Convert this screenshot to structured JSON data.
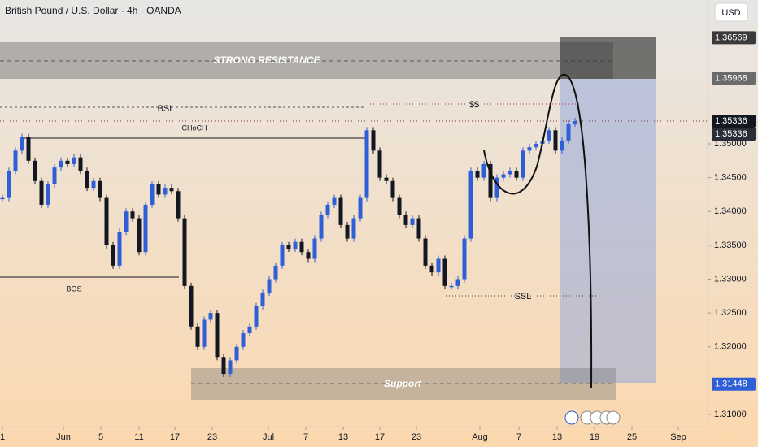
{
  "chart_data": {
    "type": "candlestick",
    "title": "British Pound / U.S. Dollar · 4h · OANDA",
    "currency": "USD",
    "x": [
      0,
      1,
      2,
      3,
      4,
      5,
      6,
      7,
      8,
      9,
      10,
      11,
      12,
      13,
      14,
      15,
      16,
      17,
      18,
      19,
      20,
      21,
      22,
      23,
      24,
      25,
      26,
      27,
      28,
      29,
      30,
      31,
      32,
      33,
      34,
      35,
      36,
      37,
      38,
      39,
      40,
      41,
      42,
      43,
      44,
      45,
      46,
      47,
      48,
      49,
      50,
      51,
      52,
      53,
      54,
      55,
      56,
      57,
      58,
      59,
      60,
      61,
      62,
      63,
      64,
      65,
      66,
      67,
      68,
      69,
      70,
      71,
      72,
      73,
      74,
      75,
      76,
      77,
      78,
      79,
      80,
      81,
      82,
      83,
      84,
      85,
      86,
      87,
      88
    ],
    "series": [
      {
        "name": "GBPUSD",
        "up_color": "#2f5fd6",
        "down_color": "#131722",
        "values": [
          1.342,
          1.346,
          1.349,
          1.351,
          1.3475,
          1.3445,
          1.341,
          1.344,
          1.3465,
          1.3475,
          1.347,
          1.348,
          1.346,
          1.3435,
          1.3445,
          1.342,
          1.335,
          1.332,
          1.337,
          1.34,
          1.339,
          1.334,
          1.341,
          1.344,
          1.3425,
          1.3435,
          1.343,
          1.339,
          1.329,
          1.323,
          1.32,
          1.324,
          1.325,
          1.3185,
          1.316,
          1.318,
          1.32,
          1.322,
          1.323,
          1.326,
          1.328,
          1.33,
          1.332,
          1.335,
          1.3345,
          1.3355,
          1.334,
          1.333,
          1.336,
          1.3395,
          1.341,
          1.342,
          1.338,
          1.336,
          1.339,
          1.342,
          1.352,
          1.349,
          1.345,
          1.3445,
          1.342,
          1.3395,
          1.338,
          1.339,
          1.336,
          1.332,
          1.331,
          1.333,
          1.329,
          1.329,
          1.33,
          1.336,
          1.346,
          1.345,
          1.347,
          1.342,
          1.345,
          1.3455,
          1.346,
          1.345,
          1.349,
          1.3495,
          1.35,
          1.3505,
          1.352,
          1.349,
          1.3505,
          1.353,
          1.35336
        ]
      }
    ],
    "xlim": [
      -0.375,
      108.375
    ],
    "ylim": [
      1.3082,
      1.37126
    ],
    "xticks": [
      {
        "value": 0,
        "label": "1"
      },
      {
        "value": 9.375,
        "label": "Jun"
      },
      {
        "value": 15.125,
        "label": "5"
      },
      {
        "value": 21,
        "label": "11"
      },
      {
        "value": 26.5,
        "label": "17"
      },
      {
        "value": 32.25,
        "label": "23"
      },
      {
        "value": 40.875,
        "label": "Jul"
      },
      {
        "value": 46.625,
        "label": "7"
      },
      {
        "value": 52.375,
        "label": "13"
      },
      {
        "value": 58,
        "label": "17"
      },
      {
        "value": 63.625,
        "label": "23"
      },
      {
        "value": 73.375,
        "label": "Aug"
      },
      {
        "value": 79.375,
        "label": "7"
      },
      {
        "value": 85.25,
        "label": "13"
      },
      {
        "value": 91,
        "label": "19"
      },
      {
        "value": 96.75,
        "label": "25"
      },
      {
        "value": 103.875,
        "label": "Sep"
      }
    ],
    "yticks": [
      {
        "value": 1.31,
        "label": "1.31000"
      },
      {
        "value": 1.32,
        "label": "1.32000"
      },
      {
        "value": 1.325,
        "label": "1.32500"
      },
      {
        "value": 1.33,
        "label": "1.33000"
      },
      {
        "value": 1.335,
        "label": "1.33500"
      },
      {
        "value": 1.34,
        "label": "1.34000"
      },
      {
        "value": 1.345,
        "label": "1.34500"
      },
      {
        "value": 1.35,
        "label": "1.35000"
      }
    ],
    "price_labels": [
      {
        "value": 1.36569,
        "label": "1.36569",
        "color": "#3a3a3a"
      },
      {
        "value": 1.35968,
        "label": "1.35968",
        "color": "#6b6b6b"
      },
      {
        "value": 1.35336,
        "label": "1.35336",
        "color": "#131722"
      },
      {
        "value": 1.35336,
        "label": "1.35336",
        "color": "#2a2e39"
      },
      {
        "value": 1.31448,
        "label": "1.31448",
        "color": "#2f5fd6"
      }
    ],
    "annotations": {
      "resistance": "STRONG RESISTANCE",
      "bsl": "BSL",
      "liquidity": "$$",
      "choch": "CHoCH",
      "bos": "BOS",
      "ssl": "SSL",
      "support": "Support"
    }
  }
}
